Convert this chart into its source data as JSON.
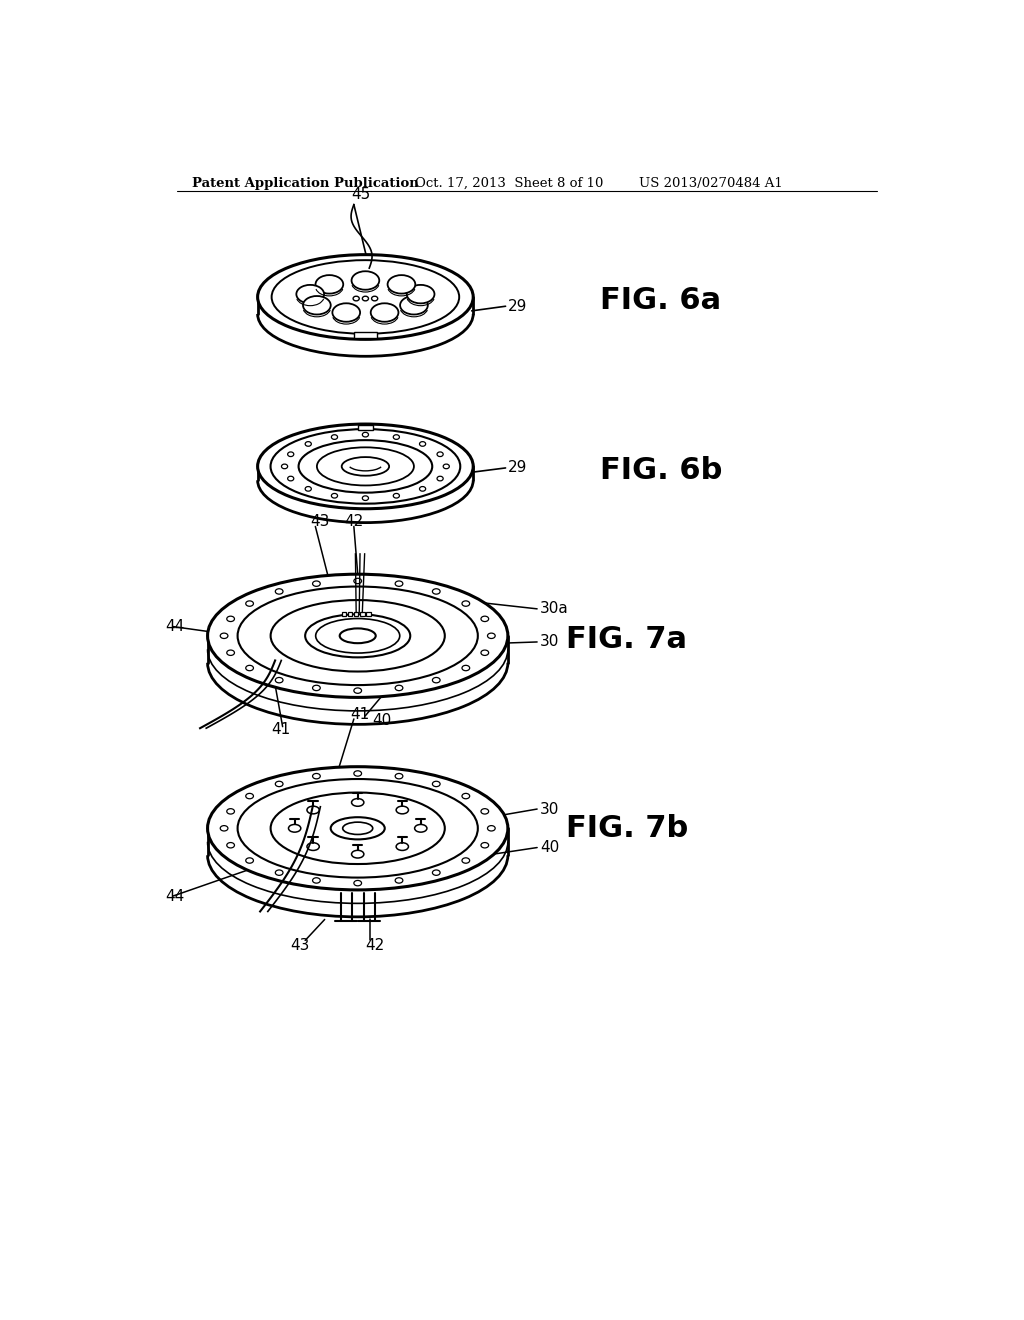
{
  "bg_color": "#ffffff",
  "header_left": "Patent Application Publication",
  "header_mid": "Oct. 17, 2013  Sheet 8 of 10",
  "header_right": "US 2013/0270484 A1",
  "fig6a_label": "FIG. 6a",
  "fig6b_label": "FIG. 6b",
  "fig7a_label": "FIG. 7a",
  "fig7b_label": "FIG. 7b",
  "lc": "#000000",
  "lw": 1.4
}
